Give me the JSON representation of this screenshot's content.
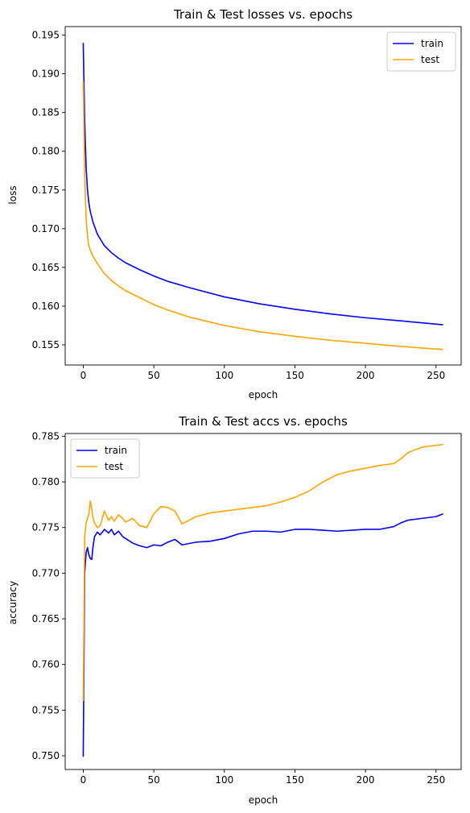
{
  "chart_data": [
    {
      "type": "line",
      "title": "Train & Test losses vs. epochs",
      "xlabel": "epoch",
      "ylabel": "loss",
      "xlim": [
        -12.8,
        267.8
      ],
      "ylim": [
        0.1524,
        0.1961
      ],
      "xticks": [
        0,
        50,
        100,
        150,
        200,
        250
      ],
      "yticks": [
        0.155,
        0.16,
        0.165,
        0.17,
        0.175,
        0.18,
        0.185,
        0.19,
        0.195
      ],
      "ytick_labels": [
        "0.155",
        "0.160",
        "0.165",
        "0.170",
        "0.175",
        "0.180",
        "0.185",
        "0.190",
        "0.195"
      ],
      "legend_position": "upper right",
      "grid": false,
      "series": [
        {
          "name": "train",
          "color": "#0000ff",
          "x": [
            0,
            1,
            2,
            3,
            4,
            5,
            7,
            10,
            15,
            20,
            25,
            30,
            40,
            50,
            60,
            75,
            100,
            125,
            150,
            175,
            200,
            225,
            255
          ],
          "y": [
            0.194,
            0.184,
            0.178,
            0.175,
            0.1733,
            0.1722,
            0.1708,
            0.1693,
            0.1678,
            0.1669,
            0.1662,
            0.1656,
            0.1647,
            0.1639,
            0.1632,
            0.1624,
            0.1612,
            0.1603,
            0.1596,
            0.159,
            0.1585,
            0.1581,
            0.1576
          ]
        },
        {
          "name": "test",
          "color": "#ffa500",
          "x": [
            0,
            1,
            2,
            3,
            4,
            5,
            7,
            10,
            15,
            20,
            25,
            30,
            40,
            50,
            60,
            75,
            100,
            125,
            150,
            175,
            200,
            225,
            255
          ],
          "y": [
            0.189,
            0.177,
            0.1715,
            0.169,
            0.1678,
            0.1672,
            0.1664,
            0.1655,
            0.1642,
            0.1633,
            0.1626,
            0.162,
            0.1611,
            0.1602,
            0.1595,
            0.1586,
            0.1575,
            0.1567,
            0.1561,
            0.1556,
            0.1552,
            0.1548,
            0.1544
          ]
        }
      ]
    },
    {
      "type": "line",
      "title": "Train & Test accs vs. epochs",
      "xlabel": "epoch",
      "ylabel": "accuracy",
      "xlim": [
        -12.8,
        267.8
      ],
      "ylim": [
        0.7485,
        0.7853
      ],
      "xticks": [
        0,
        50,
        100,
        150,
        200,
        250
      ],
      "yticks": [
        0.75,
        0.755,
        0.76,
        0.765,
        0.77,
        0.775,
        0.78,
        0.785
      ],
      "ytick_labels": [
        "0.750",
        "0.755",
        "0.760",
        "0.765",
        "0.770",
        "0.775",
        "0.780",
        "0.785"
      ],
      "legend_position": "upper left",
      "grid": false,
      "series": [
        {
          "name": "train",
          "color": "#0000ff",
          "x": [
            0,
            1,
            2,
            3,
            4,
            5,
            6,
            7,
            8,
            10,
            12,
            15,
            18,
            20,
            22,
            25,
            28,
            30,
            35,
            40,
            45,
            50,
            55,
            60,
            65,
            70,
            80,
            90,
            100,
            110,
            120,
            130,
            140,
            150,
            160,
            170,
            180,
            190,
            200,
            210,
            220,
            225,
            230,
            240,
            250,
            255
          ],
          "y": [
            0.7499,
            0.77,
            0.7722,
            0.7728,
            0.772,
            0.7716,
            0.7715,
            0.773,
            0.774,
            0.7745,
            0.7742,
            0.7748,
            0.7744,
            0.7748,
            0.7742,
            0.7746,
            0.774,
            0.7738,
            0.7733,
            0.773,
            0.7728,
            0.7731,
            0.773,
            0.7734,
            0.7737,
            0.7731,
            0.7734,
            0.7735,
            0.7738,
            0.7743,
            0.7746,
            0.7746,
            0.7745,
            0.7748,
            0.7748,
            0.7747,
            0.7746,
            0.7747,
            0.7748,
            0.7748,
            0.7751,
            0.7755,
            0.7758,
            0.776,
            0.7762,
            0.7765
          ]
        },
        {
          "name": "test",
          "color": "#ffa500",
          "x": [
            0,
            1,
            2,
            3,
            4,
            5,
            6,
            7,
            8,
            10,
            12,
            15,
            18,
            20,
            22,
            25,
            28,
            30,
            35,
            40,
            45,
            50,
            55,
            60,
            65,
            70,
            80,
            90,
            100,
            110,
            120,
            130,
            140,
            150,
            160,
            170,
            180,
            190,
            200,
            210,
            220,
            225,
            230,
            240,
            250,
            255
          ],
          "y": [
            0.756,
            0.774,
            0.7755,
            0.776,
            0.7765,
            0.7779,
            0.777,
            0.776,
            0.7755,
            0.775,
            0.7752,
            0.7768,
            0.7758,
            0.7762,
            0.7757,
            0.7764,
            0.776,
            0.7756,
            0.776,
            0.7752,
            0.775,
            0.7765,
            0.7773,
            0.7772,
            0.7768,
            0.7754,
            0.7762,
            0.7766,
            0.7768,
            0.777,
            0.7772,
            0.7774,
            0.7778,
            0.7783,
            0.779,
            0.78,
            0.7808,
            0.7812,
            0.7815,
            0.7818,
            0.782,
            0.7825,
            0.7832,
            0.7838,
            0.784,
            0.7841
          ]
        }
      ]
    }
  ]
}
